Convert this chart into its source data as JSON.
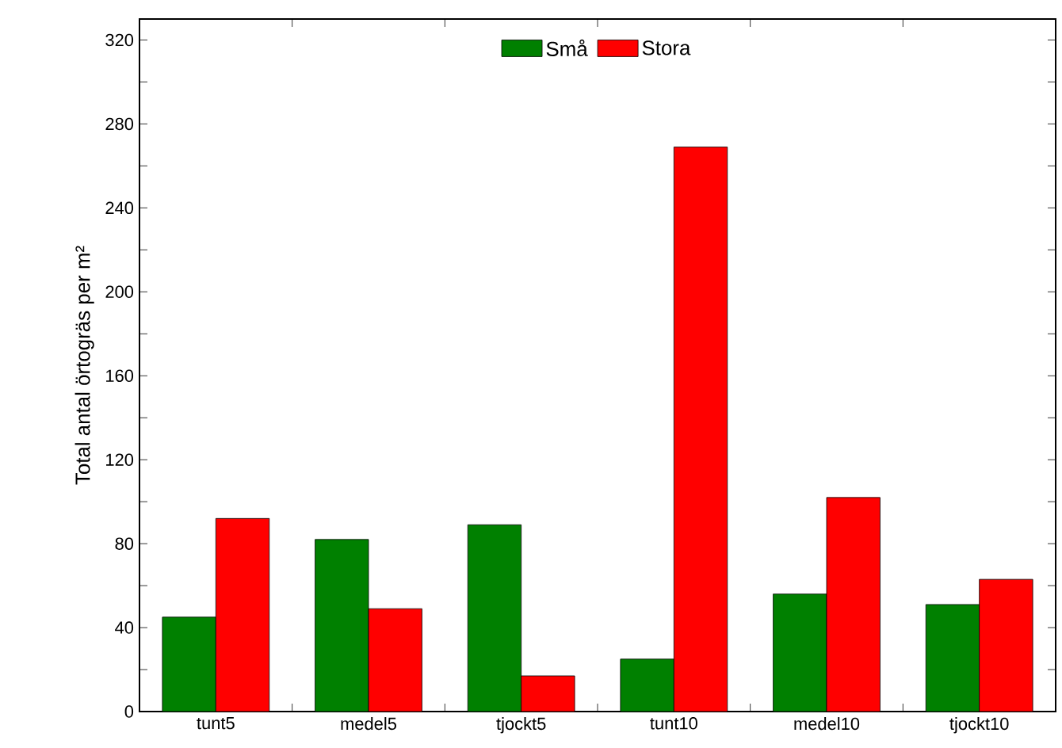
{
  "chart_data": {
    "type": "bar",
    "ylabel": "Total antal örtogräs per m²",
    "categories": [
      "tunt5",
      "medel5",
      "tjockt5",
      "tunt10",
      "medel10",
      "tjockt10"
    ],
    "series": [
      {
        "name": "Små",
        "color": "#008000",
        "values": [
          45,
          82,
          89,
          25,
          56,
          51
        ]
      },
      {
        "name": "Stora",
        "color": "#ff0000",
        "values": [
          92,
          49,
          17,
          269,
          102,
          63
        ]
      }
    ],
    "ylim": [
      0,
      330
    ],
    "yticks": [
      0,
      40,
      80,
      120,
      160,
      200,
      240,
      280,
      320
    ],
    "grid": false,
    "legend": "top"
  }
}
